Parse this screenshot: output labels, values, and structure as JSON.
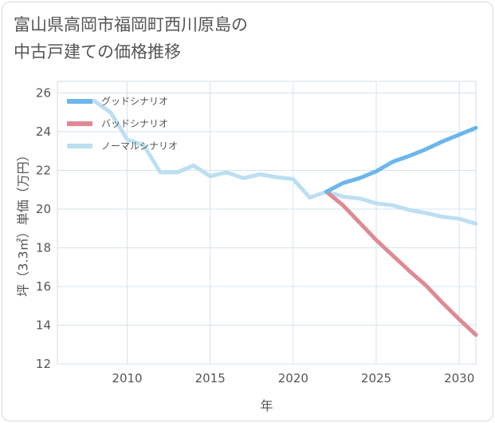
{
  "title_lines": [
    "富山県高岡市福岡町西川原島の",
    "中古戸建ての価格推移"
  ],
  "chart_data": {
    "type": "line",
    "xlabel": "年",
    "ylabel": "坪（3.3㎡）単価（万円）",
    "xlim": [
      2005.8,
      2031
    ],
    "ylim": [
      12,
      26.6
    ],
    "xticks": [
      2010,
      2015,
      2020,
      2025,
      2030
    ],
    "yticks": [
      12,
      14,
      16,
      18,
      20,
      22,
      24,
      26
    ],
    "legend_position": "top-left",
    "series": [
      {
        "name": "グッドシナリオ",
        "color": "#6cb6ec",
        "x": [
          2022,
          2023,
          2024,
          2025,
          2026,
          2027,
          2028,
          2029,
          2030,
          2031
        ],
        "y": [
          20.9,
          21.35,
          21.6,
          21.95,
          22.45,
          22.75,
          23.1,
          23.5,
          23.85,
          24.2
        ]
      },
      {
        "name": "バッドシナリオ",
        "color": "#de8a94",
        "x": [
          2022,
          2023,
          2024,
          2025,
          2026,
          2027,
          2028,
          2029,
          2030,
          2031
        ],
        "y": [
          20.9,
          20.2,
          19.3,
          18.4,
          17.6,
          16.8,
          16.05,
          15.15,
          14.3,
          13.5
        ]
      },
      {
        "name": "ノーマルシナリオ",
        "color": "#bcdff1",
        "x": [
          2008,
          2009,
          2010,
          2011,
          2012,
          2013,
          2014,
          2015,
          2016,
          2017,
          2018,
          2019,
          2020,
          2021,
          2022,
          2023,
          2024,
          2025,
          2026,
          2027,
          2028,
          2029,
          2030,
          2031
        ],
        "y": [
          25.6,
          25.0,
          23.6,
          23.3,
          21.9,
          21.9,
          22.25,
          21.7,
          21.9,
          21.6,
          21.8,
          21.65,
          21.55,
          20.6,
          20.9,
          20.65,
          20.55,
          20.3,
          20.2,
          19.95,
          19.8,
          19.6,
          19.5,
          19.25
        ]
      }
    ]
  }
}
